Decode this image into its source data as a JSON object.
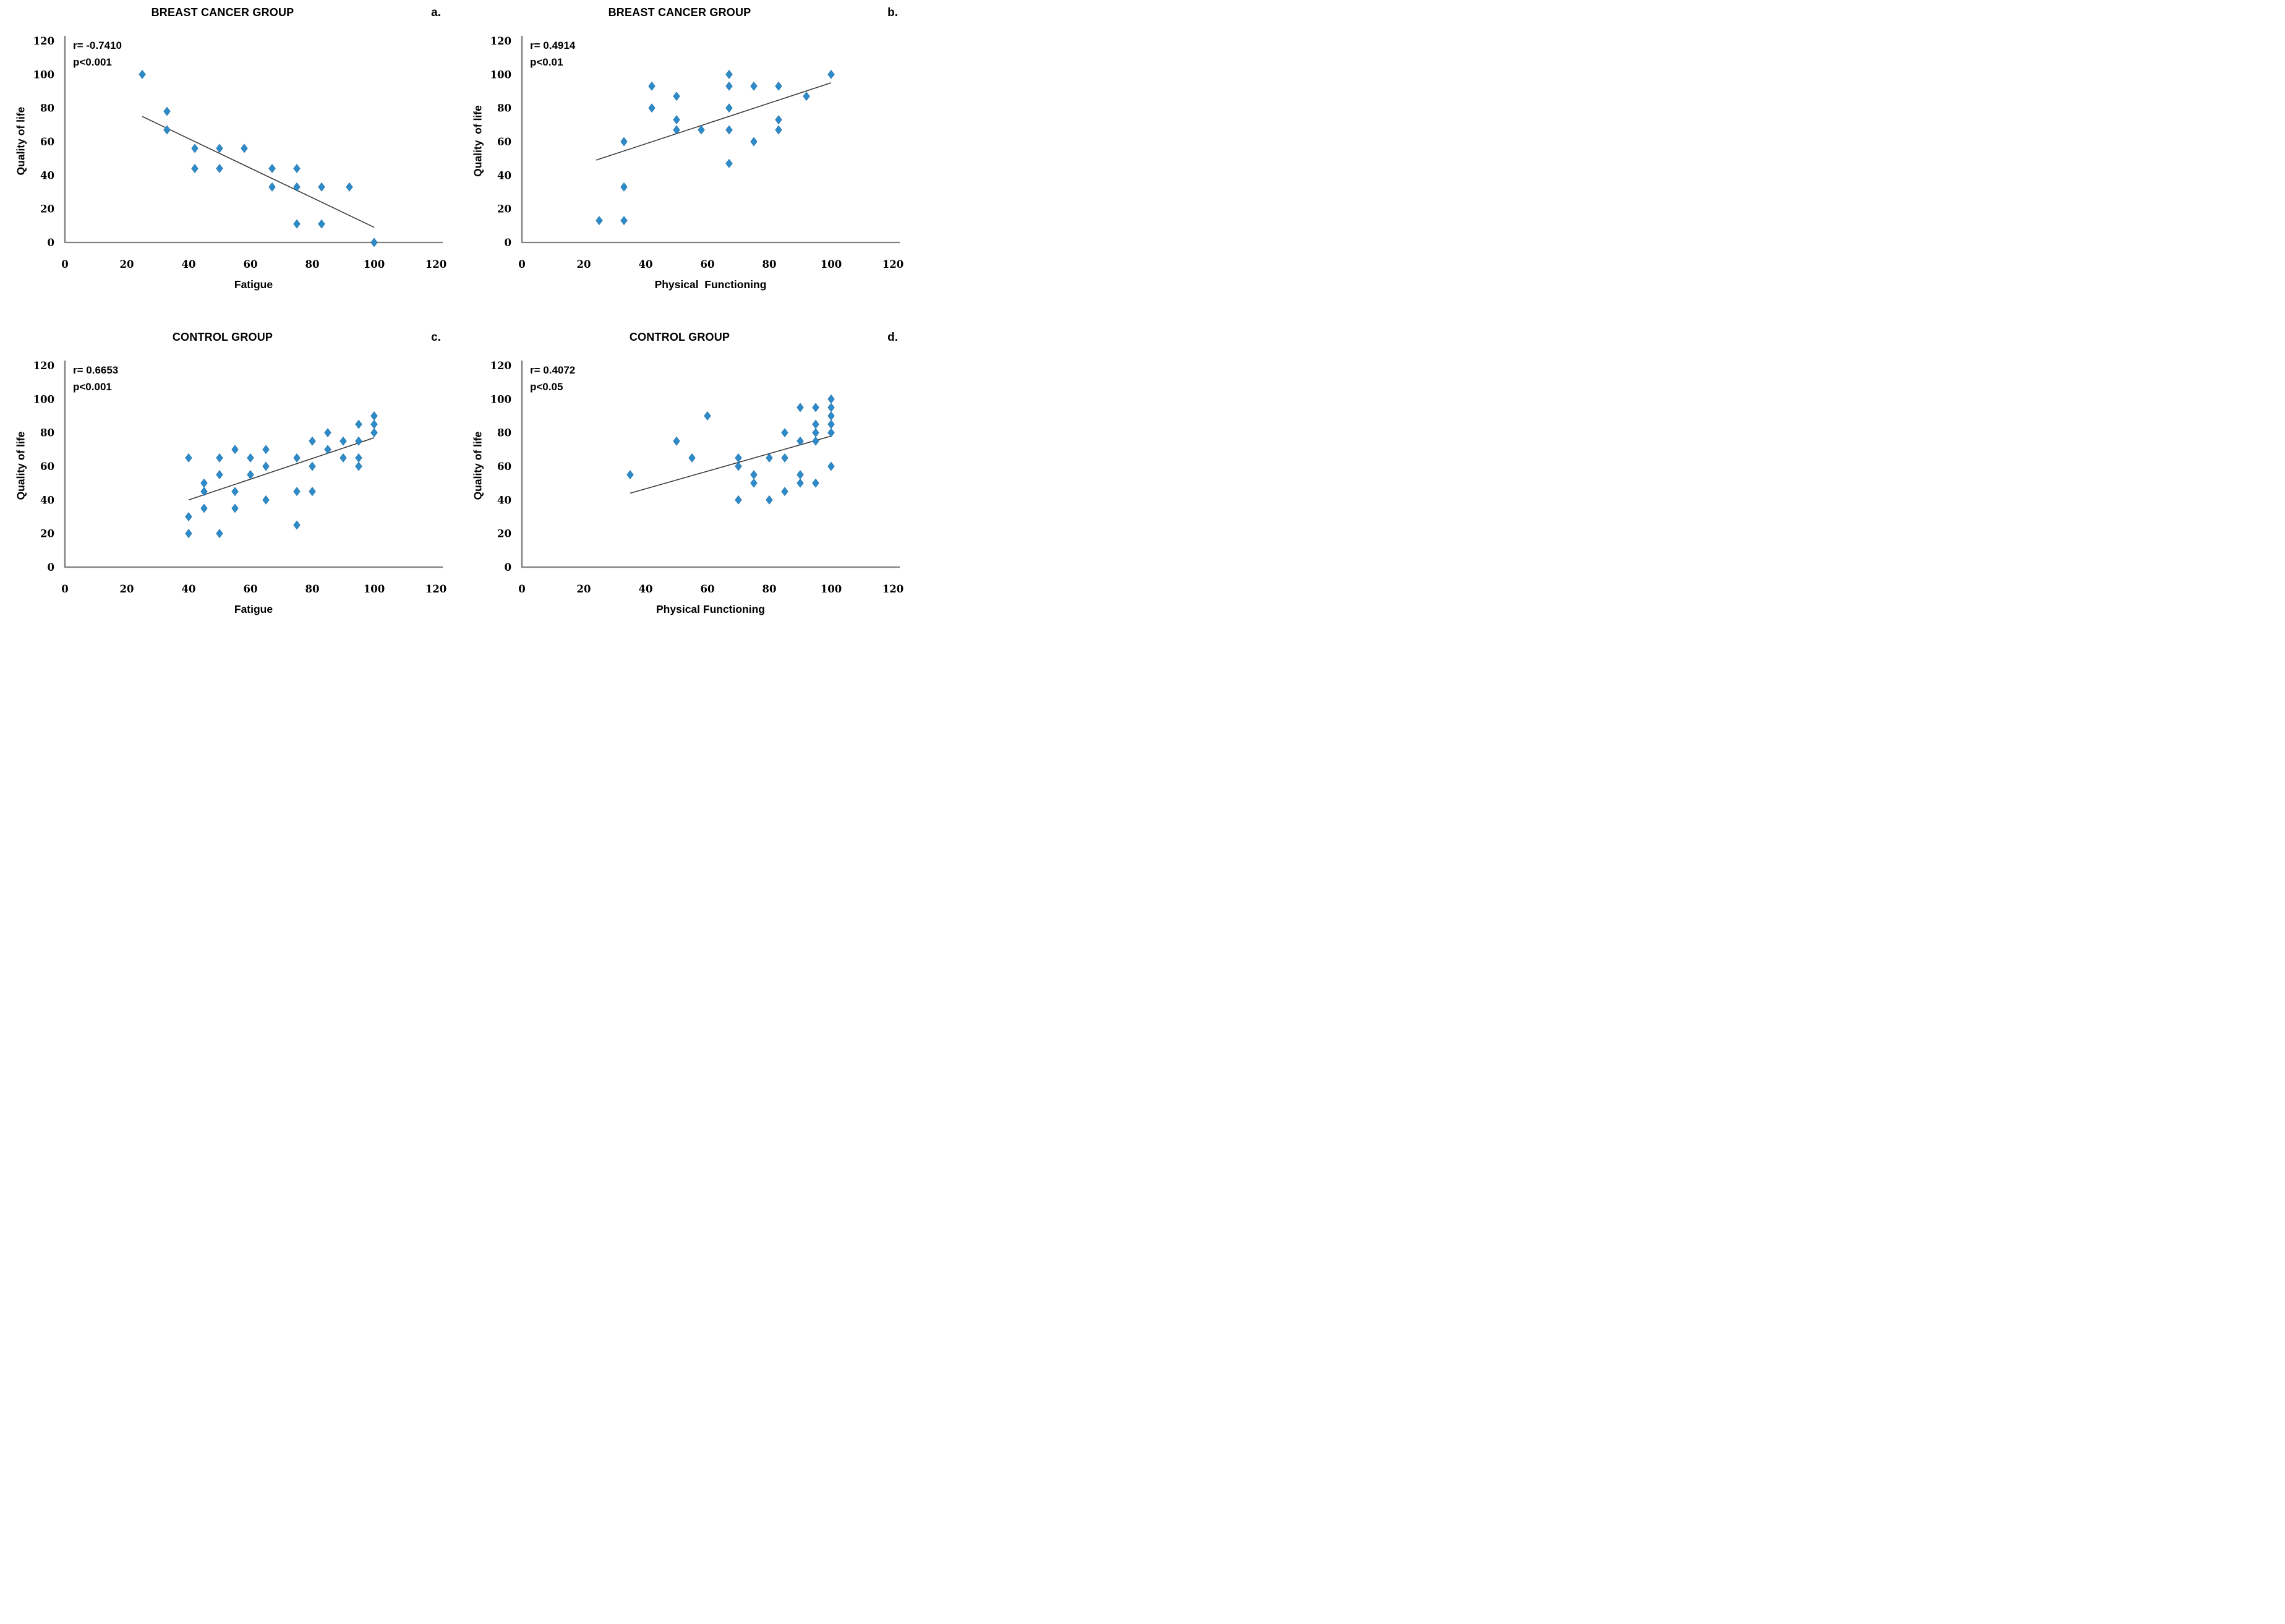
{
  "page": {
    "background": "#ffffff"
  },
  "colors": {
    "point_fill": "#2e8bc9",
    "point_stroke": "#2577ad",
    "trend_line": "#3c3c3c",
    "axis": "#7f7f7f",
    "text": "#000000"
  },
  "chart_data": [
    {
      "type": "scatter",
      "panel_label": "a.",
      "title": "BREAST CANCER GROUP",
      "stats": {
        "r_label": "r= -0.7410",
        "p_label": "p<0.001"
      },
      "xlabel": "Fatigue",
      "ylabel": "Quality of life",
      "xlim": [
        0,
        120
      ],
      "ylim": [
        0,
        120
      ],
      "xticks": [
        0,
        20,
        40,
        60,
        80,
        100,
        120
      ],
      "yticks": [
        0,
        20,
        40,
        60,
        80,
        100,
        120
      ],
      "grid": false,
      "points": [
        [
          25,
          100
        ],
        [
          33,
          78
        ],
        [
          33,
          67
        ],
        [
          42,
          56
        ],
        [
          50,
          56
        ],
        [
          58,
          56
        ],
        [
          42,
          44
        ],
        [
          50,
          44
        ],
        [
          67,
          44
        ],
        [
          75,
          44
        ],
        [
          67,
          33
        ],
        [
          75,
          33
        ],
        [
          83,
          33
        ],
        [
          92,
          33
        ],
        [
          75,
          11
        ],
        [
          83,
          11
        ],
        [
          100,
          0
        ]
      ],
      "trend_line": {
        "x1": 25,
        "y1": 75,
        "x2": 100,
        "y2": 9
      }
    },
    {
      "type": "scatter",
      "panel_label": "b.",
      "title": "BREAST CANCER GROUP",
      "stats": {
        "r_label": "r= 0.4914",
        "p_label": "p<0.01"
      },
      "xlabel": "Physical  Functioning",
      "ylabel": "Quality  of life",
      "xlim": [
        0,
        120
      ],
      "ylim": [
        0,
        120
      ],
      "xticks": [
        0,
        20,
        40,
        60,
        80,
        100,
        120
      ],
      "yticks": [
        0,
        20,
        40,
        60,
        80,
        100,
        120
      ],
      "grid": false,
      "points": [
        [
          25,
          13
        ],
        [
          33,
          13
        ],
        [
          33,
          33
        ],
        [
          33,
          60
        ],
        [
          42,
          80
        ],
        [
          42,
          93
        ],
        [
          50,
          67
        ],
        [
          50,
          73
        ],
        [
          50,
          87
        ],
        [
          58,
          67
        ],
        [
          67,
          47
        ],
        [
          67,
          67
        ],
        [
          67,
          80
        ],
        [
          67,
          93
        ],
        [
          67,
          100
        ],
        [
          75,
          60
        ],
        [
          75,
          93
        ],
        [
          83,
          67
        ],
        [
          83,
          73
        ],
        [
          83,
          93
        ],
        [
          92,
          87
        ],
        [
          100,
          100
        ]
      ],
      "trend_line": {
        "x1": 24,
        "y1": 49,
        "x2": 100,
        "y2": 95
      }
    },
    {
      "type": "scatter",
      "panel_label": "c.",
      "title": "CONTROL GROUP",
      "stats": {
        "r_label": "r= 0.6653",
        "p_label": "p<0.001"
      },
      "xlabel": "Fatigue",
      "ylabel": "Quality of life",
      "xlim": [
        0,
        120
      ],
      "ylim": [
        0,
        120
      ],
      "xticks": [
        0,
        20,
        40,
        60,
        80,
        100,
        120
      ],
      "yticks": [
        0,
        20,
        40,
        60,
        80,
        100,
        120
      ],
      "grid": false,
      "points": [
        [
          40,
          20
        ],
        [
          50,
          20
        ],
        [
          75,
          25
        ],
        [
          40,
          30
        ],
        [
          45,
          35
        ],
        [
          55,
          35
        ],
        [
          65,
          40
        ],
        [
          45,
          45
        ],
        [
          55,
          45
        ],
        [
          75,
          45
        ],
        [
          80,
          45
        ],
        [
          45,
          50
        ],
        [
          50,
          55
        ],
        [
          60,
          55
        ],
        [
          65,
          60
        ],
        [
          80,
          60
        ],
        [
          95,
          60
        ],
        [
          40,
          65
        ],
        [
          50,
          65
        ],
        [
          60,
          65
        ],
        [
          75,
          65
        ],
        [
          90,
          65
        ],
        [
          95,
          65
        ],
        [
          55,
          70
        ],
        [
          65,
          70
        ],
        [
          85,
          70
        ],
        [
          80,
          75
        ],
        [
          90,
          75
        ],
        [
          95,
          75
        ],
        [
          85,
          80
        ],
        [
          100,
          80
        ],
        [
          95,
          85
        ],
        [
          100,
          85
        ],
        [
          100,
          90
        ]
      ],
      "trend_line": {
        "x1": 40,
        "y1": 40,
        "x2": 100,
        "y2": 77
      }
    },
    {
      "type": "scatter",
      "panel_label": "d.",
      "title": "CONTROL GROUP",
      "stats": {
        "r_label": "r= 0.4072",
        "p_label": "p<0.05"
      },
      "xlabel": "Physical Functioning",
      "ylabel": "Quality of life",
      "xlim": [
        0,
        120
      ],
      "ylim": [
        0,
        120
      ],
      "xticks": [
        0,
        20,
        40,
        60,
        80,
        100,
        120
      ],
      "yticks": [
        0,
        20,
        40,
        60,
        80,
        100,
        120
      ],
      "grid": false,
      "points": [
        [
          70,
          40
        ],
        [
          80,
          40
        ],
        [
          85,
          45
        ],
        [
          75,
          50
        ],
        [
          90,
          50
        ],
        [
          95,
          50
        ],
        [
          35,
          55
        ],
        [
          75,
          55
        ],
        [
          90,
          55
        ],
        [
          70,
          60
        ],
        [
          100,
          60
        ],
        [
          55,
          65
        ],
        [
          70,
          65
        ],
        [
          80,
          65
        ],
        [
          85,
          65
        ],
        [
          50,
          75
        ],
        [
          90,
          75
        ],
        [
          95,
          75
        ],
        [
          85,
          80
        ],
        [
          95,
          80
        ],
        [
          100,
          80
        ],
        [
          95,
          85
        ],
        [
          100,
          85
        ],
        [
          60,
          90
        ],
        [
          100,
          90
        ],
        [
          90,
          95
        ],
        [
          95,
          95
        ],
        [
          100,
          95
        ],
        [
          100,
          100
        ]
      ],
      "trend_line": {
        "x1": 35,
        "y1": 44,
        "x2": 100,
        "y2": 78
      }
    }
  ]
}
